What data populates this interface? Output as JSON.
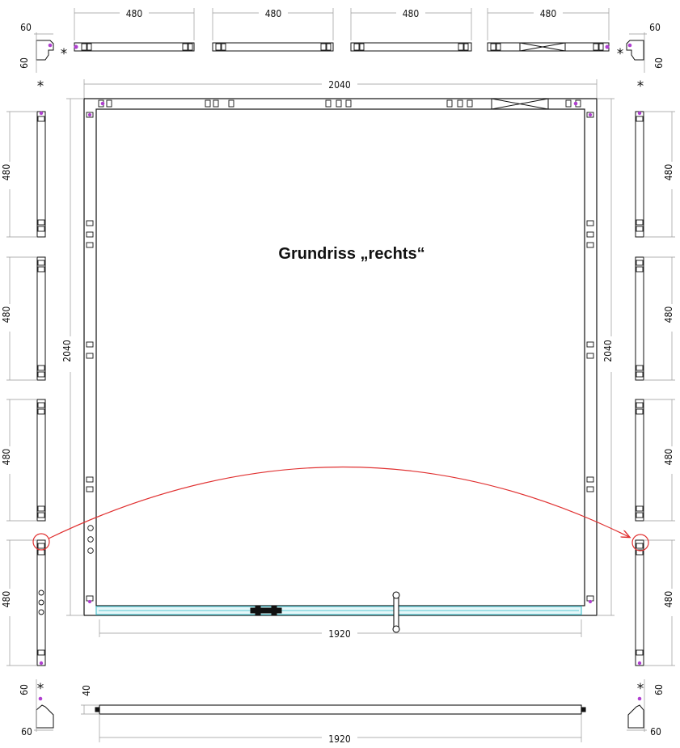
{
  "title": "Grundriss „rechts“",
  "marker": "*",
  "dimensions": {
    "top_segments": [
      "480",
      "480",
      "480",
      "480"
    ],
    "overall_width": "2040",
    "overall_height": "2040",
    "door_width": "1920",
    "corner_size": "60",
    "side_segments": [
      "480",
      "480",
      "480",
      "480"
    ],
    "bottom_rail_width": "1920",
    "bottom_rail_height": "40"
  },
  "colors": {
    "line": "#111111",
    "dimension_line": "#999999",
    "glass": "#5bc8d3",
    "highlight": "#e03030",
    "corner_dot": "#b040d0"
  }
}
